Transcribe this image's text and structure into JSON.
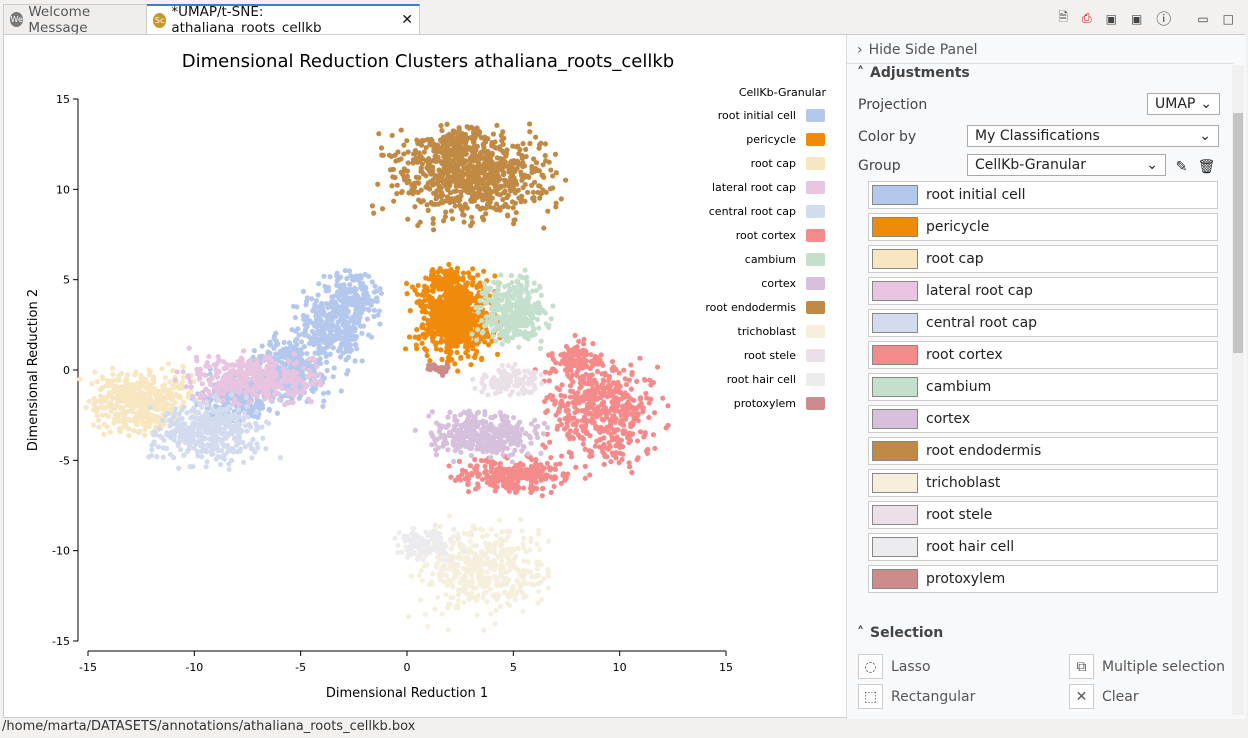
{
  "tabs": [
    {
      "label": "Welcome Message",
      "icon": "We"
    },
    {
      "label": "*UMAP/t-SNE: athaliana_roots_cellkb",
      "icon": "Sc"
    }
  ],
  "side": {
    "hide_label": "Hide Side Panel",
    "adjustments": "Adjustments",
    "projection_label": "Projection",
    "projection_value": "UMAP",
    "color_by_label": "Color by",
    "color_by_value": "My Classifications",
    "group_label": "Group",
    "group_value": "CellKb-Granular",
    "selection": "Selection",
    "tools": [
      "Lasso",
      "Multiple selection",
      "Rectangular",
      "Clear"
    ]
  },
  "status": "/home/marta/DATASETS/annotations/athaliana_roots_cellkb.box",
  "chart_data": {
    "type": "scatter",
    "title": "Dimensional Reduction Clusters athaliana_roots_cellkb",
    "xlabel": "Dimensional Reduction 1",
    "ylabel": "Dimensional Reduction 2",
    "xlim": [
      -15,
      15
    ],
    "ylim": [
      -15,
      15
    ],
    "xticks": [
      -15,
      -10,
      -5,
      0,
      5,
      10,
      15
    ],
    "yticks": [
      15,
      10,
      5,
      0,
      -5,
      -10,
      -15
    ],
    "legend_title": "CellKb-Granular",
    "legend_position": "top-right",
    "series": [
      {
        "name": "root initial cell",
        "color": "#b4c8ee",
        "regions": [
          [
            -8,
            -1.5,
            1.5,
            1.2,
            250
          ],
          [
            -5.5,
            0,
            1.6,
            1.6,
            300
          ],
          [
            -3.5,
            2.5,
            1.5,
            1.8,
            300
          ],
          [
            -2.5,
            4,
            1,
            1.2,
            150
          ]
        ]
      },
      {
        "name": "pericycle",
        "color": "#f08a0a",
        "regions": [
          [
            2.3,
            3,
            1.6,
            2,
            700
          ],
          [
            1.8,
            5,
            0.8,
            0.6,
            80
          ]
        ]
      },
      {
        "name": "root cap",
        "color": "#f8e6c0",
        "regions": [
          [
            -12.5,
            -1.7,
            1.9,
            1.5,
            450
          ]
        ]
      },
      {
        "name": "lateral root cap",
        "color": "#e8c4e0",
        "regions": [
          [
            -7.3,
            -0.5,
            2.5,
            1.1,
            350
          ]
        ]
      },
      {
        "name": "central root cap",
        "color": "#d3dcef",
        "regions": [
          [
            -9.3,
            -3.4,
            2.2,
            1.5,
            400
          ]
        ]
      },
      {
        "name": "root cortex",
        "color": "#f58a8a",
        "regions": [
          [
            9.2,
            -2.2,
            2.2,
            2.4,
            500
          ],
          [
            5,
            -5.8,
            2.2,
            0.8,
            250
          ],
          [
            8,
            0.5,
            1,
            1,
            80
          ]
        ]
      },
      {
        "name": "cambium",
        "color": "#c4e0cc",
        "regions": [
          [
            5,
            3.2,
            1.4,
            1.6,
            350
          ]
        ]
      },
      {
        "name": "cortex",
        "color": "#d6c0dc",
        "regions": [
          [
            3.8,
            -3.6,
            2.2,
            1,
            350
          ]
        ]
      },
      {
        "name": "root endodermis",
        "color": "#c08a44",
        "regions": [
          [
            3,
            10.8,
            3,
            2,
            800
          ],
          [
            2.5,
            12.7,
            1,
            0.8,
            100
          ]
        ]
      },
      {
        "name": "trichoblast",
        "color": "#f7efde",
        "regions": [
          [
            3.5,
            -11,
            2.6,
            2.2,
            450
          ]
        ]
      },
      {
        "name": "root stele",
        "color": "#ebdfe8",
        "regions": [
          [
            4.8,
            -0.6,
            1.3,
            0.7,
            120
          ]
        ]
      },
      {
        "name": "root hair cell",
        "color": "#ececee",
        "regions": [
          [
            0.8,
            -9.5,
            1.2,
            0.8,
            120
          ]
        ]
      },
      {
        "name": "protoxylem",
        "color": "#cc8c8c",
        "regions": [
          [
            1.5,
            0.1,
            0.5,
            0.3,
            30
          ]
        ]
      }
    ]
  }
}
